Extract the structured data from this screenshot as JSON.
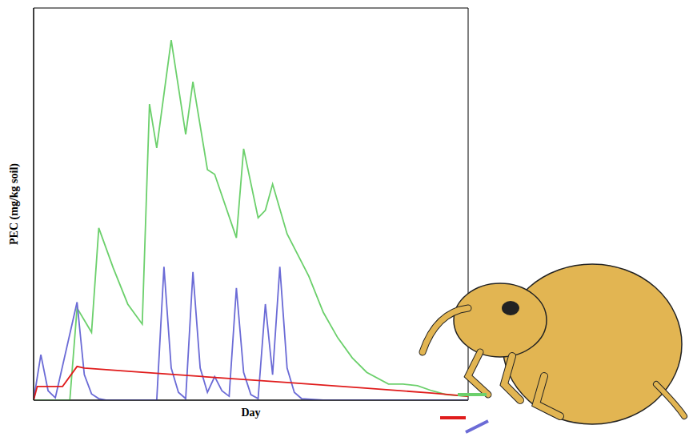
{
  "chart_data": {
    "type": "line",
    "x_label": "Day",
    "y_label": "PEC (mg/kg soil)",
    "xlim": [
      0,
      60
    ],
    "ylim": [
      0,
      100
    ],
    "tick_labels": false,
    "grid": false,
    "series": [
      {
        "color": "#6cd06c",
        "x": [
          0,
          5,
          6,
          8,
          9,
          11,
          13,
          15,
          16,
          17,
          19,
          21,
          22,
          24,
          25,
          28,
          29,
          31,
          32,
          33,
          35,
          38,
          40,
          42,
          44,
          46,
          49,
          51,
          53,
          55,
          57,
          60
        ],
        "values": [
          0,
          0,
          23.5,
          17.3,
          43.9,
          33.7,
          24.5,
          19.4,
          75.5,
          64.3,
          91.8,
          67.8,
          81.2,
          58.8,
          57.6,
          41.4,
          64.1,
          46.5,
          48.4,
          55.1,
          42.4,
          31.6,
          22.4,
          15.9,
          10.8,
          7.1,
          4.1,
          4.1,
          3.7,
          2.4,
          1.4,
          1
        ]
      },
      {
        "color": "#6b6bd6",
        "x": [
          0,
          1,
          2,
          3,
          6,
          7,
          8,
          9,
          10,
          17,
          18,
          19,
          20,
          21,
          22,
          23,
          24,
          25,
          26,
          27,
          28,
          29,
          30,
          31,
          32,
          33,
          34,
          35,
          36,
          37,
          40,
          60
        ],
        "values": [
          0,
          11.6,
          2.4,
          0.6,
          25,
          6.5,
          1.6,
          0.4,
          0,
          0,
          34,
          8.2,
          2,
          0.4,
          32.7,
          8.2,
          2,
          6,
          2.4,
          1,
          28.6,
          7.1,
          1.4,
          0.4,
          24.5,
          6.5,
          34,
          8.2,
          2,
          0.4,
          0,
          0
        ]
      },
      {
        "color": "#e01c1c",
        "x": [
          0,
          0.5,
          4,
          6,
          7,
          15,
          25,
          35,
          45,
          55,
          60
        ],
        "values": [
          0,
          3.5,
          3.5,
          8.6,
          8.2,
          7.1,
          5.8,
          4.5,
          3.2,
          1.8,
          1
        ]
      }
    ]
  }
}
